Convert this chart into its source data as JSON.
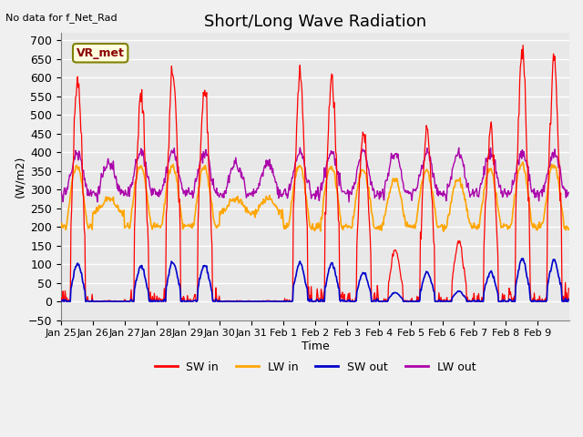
{
  "title": "Short/Long Wave Radiation",
  "xlabel": "Time",
  "ylabel": "(W/m2)",
  "note": "No data for f_Net_Rad",
  "legend_label": "VR_met",
  "ylim": [
    -50,
    720
  ],
  "yticks": [
    -50,
    0,
    50,
    100,
    150,
    200,
    250,
    300,
    350,
    400,
    450,
    500,
    550,
    600,
    650,
    700
  ],
  "xtick_labels": [
    "Jan 25",
    "Jan 26",
    "Jan 27",
    "Jan 28",
    "Jan 29",
    "Jan 30",
    "Jan 31",
    "Feb 1",
    "Feb 2",
    "Feb 3",
    "Feb 4",
    "Feb 5",
    "Feb 6",
    "Feb 7",
    "Feb 8",
    "Feb 9"
  ],
  "sw_in_color": "#ff0000",
  "lw_in_color": "#ffa500",
  "sw_out_color": "#0000cc",
  "lw_out_color": "#aa00aa",
  "bg_color": "#e8e8e8",
  "grid_color": "#ffffff",
  "n_points_per_day": 48,
  "n_days": 16,
  "sw_in_peaks": [
    600,
    1,
    550,
    620,
    570,
    1,
    1,
    605,
    600,
    460,
    140,
    460,
    160,
    460,
    675,
    660
  ],
  "lw_in_base": 255,
  "lw_out_base": 320,
  "sw_out_scale": 0.17
}
